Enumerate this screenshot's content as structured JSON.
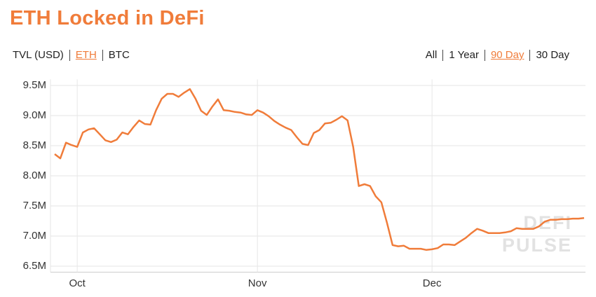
{
  "header": {
    "title": "ETH Locked in DeFi",
    "units": [
      "TVL (USD)",
      "ETH",
      "BTC"
    ],
    "ranges": [
      "All",
      "1 Year",
      "90 Day",
      "30 Day"
    ]
  },
  "chart_data": {
    "type": "line",
    "color": "#f07c3a",
    "grid": true,
    "watermark": [
      "DEFI",
      "PULSE"
    ],
    "categories": [
      null,
      null,
      null,
      null,
      "Oct",
      null,
      null,
      null,
      null,
      null,
      null,
      null,
      null,
      null,
      null,
      null,
      null,
      null,
      null,
      null,
      null,
      null,
      null,
      null,
      null,
      null,
      null,
      null,
      null,
      null,
      null,
      null,
      null,
      null,
      null,
      null,
      "Nov",
      null,
      null,
      null,
      null,
      null,
      null,
      null,
      null,
      null,
      null,
      null,
      null,
      null,
      null,
      null,
      null,
      null,
      null,
      null,
      null,
      null,
      null,
      null,
      null,
      null,
      null,
      null,
      null,
      null,
      null,
      "Dec",
      null,
      null,
      null,
      null,
      null,
      null,
      null,
      null,
      null,
      null,
      null,
      null,
      null,
      null,
      null,
      null,
      null,
      null,
      null,
      null,
      null,
      null,
      null,
      null,
      null,
      null,
      null
    ],
    "values": [
      8360000,
      8290000,
      8550000,
      8510000,
      8480000,
      8720000,
      8770000,
      8790000,
      8690000,
      8590000,
      8560000,
      8600000,
      8720000,
      8690000,
      8810000,
      8920000,
      8860000,
      8850000,
      9090000,
      9280000,
      9360000,
      9360000,
      9310000,
      9380000,
      9440000,
      9280000,
      9080000,
      9010000,
      9150000,
      9270000,
      9090000,
      9080000,
      9060000,
      9050000,
      9020000,
      9010000,
      9090000,
      9050000,
      8990000,
      8910000,
      8850000,
      8800000,
      8760000,
      8640000,
      8530000,
      8510000,
      8710000,
      8760000,
      8870000,
      8880000,
      8930000,
      8990000,
      8920000,
      8480000,
      7830000,
      7860000,
      7830000,
      7660000,
      7560000,
      7220000,
      6850000,
      6830000,
      6840000,
      6790000,
      6790000,
      6790000,
      6770000,
      6780000,
      6800000,
      6860000,
      6860000,
      6850000,
      6910000,
      6970000,
      7050000,
      7120000,
      7090000,
      7050000,
      7050000,
      7050000,
      7060000,
      7080000,
      7130000,
      7120000,
      7120000,
      7120000,
      7160000,
      7240000,
      7270000,
      7270000,
      7280000,
      7280000,
      7290000,
      7290000,
      7300000
    ],
    "ylim": [
      6400000,
      9600000
    ],
    "yticks": [
      {
        "value": 6500000,
        "label": "6.5M"
      },
      {
        "value": 7000000,
        "label": "7.0M"
      },
      {
        "value": 7500000,
        "label": "7.5M"
      },
      {
        "value": 8000000,
        "label": "8.0M"
      },
      {
        "value": 8500000,
        "label": "8.5M"
      },
      {
        "value": 9000000,
        "label": "9.0M"
      },
      {
        "value": 9500000,
        "label": "9.5M"
      }
    ]
  }
}
